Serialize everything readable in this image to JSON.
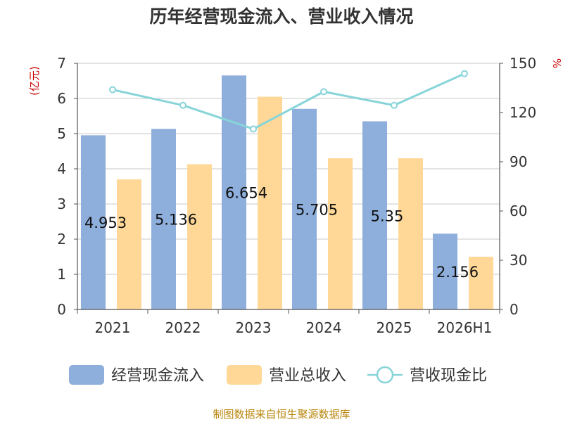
{
  "title": "历年经营现金流入、营业收入情况",
  "footer": "制图数据来自恒生聚源数据库",
  "chart_data": {
    "type": "bar",
    "categories": [
      "2021",
      "2022",
      "2023",
      "2024",
      "2025",
      "2026H1"
    ],
    "series": [
      {
        "name": "经营现金流入",
        "type": "bar",
        "axis": "left",
        "color": "#8eaedb",
        "values": [
          4.953,
          5.136,
          6.654,
          5.705,
          5.35,
          2.156
        ],
        "labels": [
          "4.953",
          "5.136",
          "6.654",
          "5.705",
          "5.35",
          "2.156"
        ]
      },
      {
        "name": "营业总收入",
        "type": "bar",
        "axis": "left",
        "color": "#ffd898",
        "values": [
          3.7,
          4.13,
          6.05,
          4.3,
          4.3,
          1.5
        ]
      },
      {
        "name": "营收现金比",
        "type": "line",
        "axis": "right",
        "color": "#87d4d9",
        "values": [
          133.9,
          124.4,
          110.0,
          132.7,
          124.4,
          143.7
        ]
      }
    ],
    "y_left": {
      "label": "(亿元)",
      "min": 0,
      "max": 7,
      "ticks": [
        "0",
        "1",
        "2",
        "3",
        "4",
        "5",
        "6",
        "7"
      ]
    },
    "y_right": {
      "label": "%",
      "min": 0,
      "max": 150,
      "ticks": [
        "0",
        "30",
        "60",
        "90",
        "120",
        "150"
      ]
    },
    "grid": true,
    "legend": "bottom"
  }
}
